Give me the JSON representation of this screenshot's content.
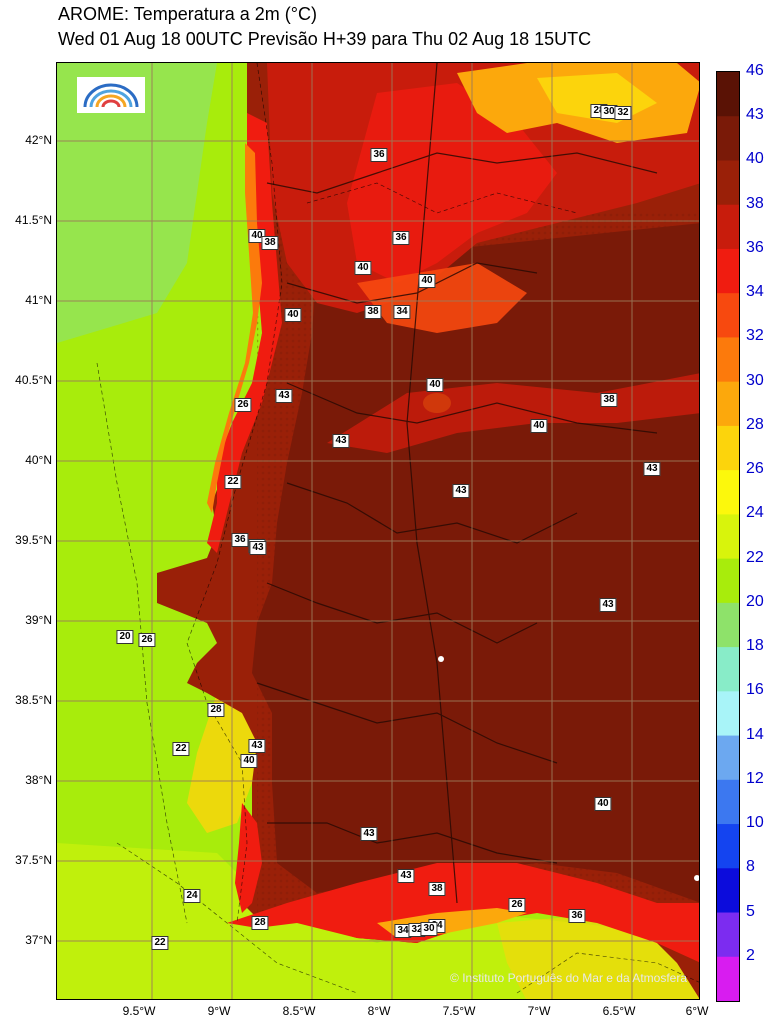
{
  "header": {
    "title": "AROME: Temperatura a 2m (°C)",
    "subtitle": "Wed 01 Aug 18 00UTC Previsão H+39 para Thu 02 Aug 18 15UTC"
  },
  "map": {
    "copyright": "© Instituto Português do Mar e da Atmosfera",
    "logo_icon": "ipma-logo-icon",
    "latitude_labels": [
      "42°N",
      "41.5°N",
      "41°N",
      "40.5°N",
      "40°N",
      "39.5°N",
      "39°N",
      "38.5°N",
      "38°N",
      "37.5°N",
      "37°N"
    ],
    "longitude_labels": [
      "9.5°W",
      "9°W",
      "8.5°W",
      "8°W",
      "7.5°W",
      "7°W",
      "6.5°W",
      "6°W"
    ],
    "contour_labels": [
      "28",
      "30",
      "32",
      "36",
      "36",
      "40",
      "40",
      "38",
      "34",
      "40",
      "40",
      "38",
      "43",
      "40",
      "43",
      "43",
      "43",
      "43",
      "43",
      "43",
      "40",
      "38",
      "28",
      "43",
      "22",
      "24",
      "22",
      "20",
      "26",
      "40",
      "43",
      "36",
      "43",
      "26",
      "28",
      "24",
      "22",
      "36",
      "40",
      "34",
      "38",
      "32",
      "30",
      "26"
    ]
  },
  "legend": {
    "labels": [
      "46",
      "43",
      "40",
      "38",
      "36",
      "34",
      "32",
      "30",
      "28",
      "26",
      "24",
      "22",
      "20",
      "18",
      "16",
      "14",
      "12",
      "10",
      "8",
      "5",
      "2"
    ],
    "colors": [
      "#5a1205",
      "#7a1a08",
      "#9a2008",
      "#c81c0c",
      "#f01c10",
      "#f7490f",
      "#fc7a0c",
      "#fca80c",
      "#fcd40c",
      "#fcf80c",
      "#d8f40c",
      "#a8ec0c",
      "#8ee26a",
      "#88ecc8",
      "#a8f4f8",
      "#6ca8f0",
      "#3c78f0",
      "#1444f0",
      "#0c0cdc",
      "#7c2cf0",
      "#d81cf0"
    ]
  }
}
